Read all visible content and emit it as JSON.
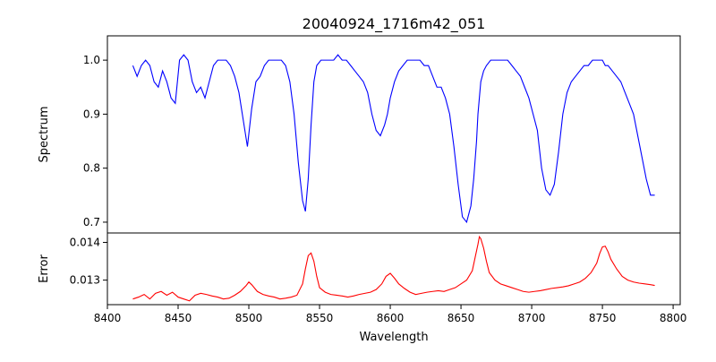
{
  "chart_data": [
    {
      "type": "line",
      "title": "20040924_1716m42_051",
      "xlabel": "",
      "ylabel": "Spectrum",
      "xlim": [
        8400,
        8805
      ],
      "ylim": [
        0.68,
        1.045
      ],
      "xticks": [
        8400,
        8450,
        8500,
        8550,
        8600,
        8650,
        8700,
        8750,
        8800
      ],
      "yticks": [
        0.7,
        0.8,
        0.9,
        1.0
      ],
      "ytick_labels": [
        "0.7",
        "0.8",
        "0.9",
        "1.0"
      ],
      "color": "#0000ff",
      "series": [
        {
          "x": [
            8418,
            8421,
            8424,
            8427,
            8430,
            8433,
            8436,
            8439,
            8442,
            8445,
            8448,
            8451,
            8454,
            8457,
            8460,
            8463,
            8466,
            8469,
            8472,
            8475,
            8478,
            8481,
            8484,
            8487,
            8490,
            8493,
            8496,
            8499,
            8502,
            8505,
            8508,
            8511,
            8514,
            8517,
            8520,
            8523,
            8526,
            8529,
            8532,
            8535,
            8538,
            8540,
            8542,
            8544,
            8546,
            8548,
            8551,
            8554,
            8557,
            8560,
            8563,
            8566,
            8569,
            8572,
            8575,
            8578,
            8581,
            8584,
            8587,
            8590,
            8593,
            8596,
            8598,
            8600,
            8603,
            8606,
            8609,
            8612,
            8615,
            8618,
            8621,
            8624,
            8627,
            8630,
            8633,
            8636,
            8639,
            8642,
            8645,
            8648,
            8651,
            8654,
            8657,
            8659,
            8661,
            8662,
            8663,
            8664,
            8666,
            8668,
            8671,
            8674,
            8677,
            8680,
            8683,
            8686,
            8689,
            8692,
            8695,
            8698,
            8701,
            8704,
            8707,
            8710,
            8713,
            8716,
            8719,
            8722,
            8725,
            8728,
            8731,
            8734,
            8737,
            8740,
            8743,
            8746,
            8748,
            8750,
            8752,
            8754,
            8757,
            8760,
            8763,
            8766,
            8769,
            8772,
            8775,
            8778,
            8781,
            8784,
            8787
          ],
          "y": [
            0.99,
            0.97,
            0.99,
            1.0,
            0.99,
            0.96,
            0.95,
            0.98,
            0.96,
            0.93,
            0.92,
            1.0,
            1.01,
            1.0,
            0.96,
            0.94,
            0.95,
            0.93,
            0.96,
            0.99,
            1.0,
            1.0,
            1.0,
            0.99,
            0.97,
            0.94,
            0.89,
            0.84,
            0.91,
            0.96,
            0.97,
            0.99,
            1.0,
            1.0,
            1.0,
            1.0,
            0.99,
            0.96,
            0.9,
            0.81,
            0.74,
            0.72,
            0.78,
            0.88,
            0.96,
            0.99,
            1.0,
            1.0,
            1.0,
            1.0,
            1.01,
            1.0,
            1.0,
            0.99,
            0.98,
            0.97,
            0.96,
            0.94,
            0.9,
            0.87,
            0.86,
            0.88,
            0.9,
            0.93,
            0.96,
            0.98,
            0.99,
            1.0,
            1.0,
            1.0,
            1.0,
            0.99,
            0.99,
            0.97,
            0.95,
            0.95,
            0.93,
            0.9,
            0.84,
            0.77,
            0.71,
            0.7,
            0.73,
            0.78,
            0.85,
            0.9,
            0.93,
            0.96,
            0.98,
            0.99,
            1.0,
            1.0,
            1.0,
            1.0,
            1.0,
            0.99,
            0.98,
            0.97,
            0.95,
            0.93,
            0.9,
            0.87,
            0.8,
            0.76,
            0.75,
            0.77,
            0.83,
            0.9,
            0.94,
            0.96,
            0.97,
            0.98,
            0.99,
            0.99,
            1.0,
            1.0,
            1.0,
            1.0,
            0.99,
            0.99,
            0.98,
            0.97,
            0.96,
            0.94,
            0.92,
            0.9,
            0.86,
            0.82,
            0.78,
            0.75,
            0.75
          ]
        }
      ]
    },
    {
      "type": "line",
      "title": "",
      "xlabel": "Wavelength",
      "ylabel": "Error",
      "xlim": [
        8400,
        8805
      ],
      "ylim": [
        0.01235,
        0.01425
      ],
      "xticks": [
        8400,
        8450,
        8500,
        8550,
        8600,
        8650,
        8700,
        8750,
        8800
      ],
      "xtick_labels": [
        "8400",
        "8450",
        "8500",
        "8550",
        "8600",
        "8650",
        "8700",
        "8750",
        "8800"
      ],
      "yticks": [
        0.013,
        0.014
      ],
      "ytick_labels": [
        "0.013",
        "0.014"
      ],
      "color": "#ff0000",
      "series": [
        {
          "x": [
            8418,
            8422,
            8426,
            8430,
            8434,
            8438,
            8442,
            8446,
            8450,
            8454,
            8458,
            8462,
            8466,
            8470,
            8474,
            8478,
            8482,
            8486,
            8490,
            8494,
            8498,
            8500,
            8502,
            8506,
            8510,
            8514,
            8518,
            8522,
            8526,
            8530,
            8534,
            8538,
            8540,
            8542,
            8544,
            8546,
            8548,
            8550,
            8554,
            8558,
            8562,
            8566,
            8570,
            8574,
            8578,
            8582,
            8586,
            8590,
            8594,
            8597,
            8600,
            8603,
            8606,
            8610,
            8614,
            8618,
            8622,
            8626,
            8630,
            8634,
            8638,
            8642,
            8646,
            8650,
            8654,
            8658,
            8660,
            8662,
            8663,
            8664,
            8666,
            8668,
            8670,
            8674,
            8678,
            8682,
            8686,
            8690,
            8694,
            8698,
            8702,
            8706,
            8710,
            8714,
            8718,
            8722,
            8726,
            8730,
            8734,
            8738,
            8742,
            8746,
            8748,
            8750,
            8752,
            8754,
            8756,
            8760,
            8764,
            8768,
            8772,
            8776,
            8780,
            8784,
            8787
          ],
          "y": [
            0.0125,
            0.01255,
            0.01262,
            0.0125,
            0.01265,
            0.0127,
            0.0126,
            0.01268,
            0.01255,
            0.0125,
            0.01245,
            0.0126,
            0.01265,
            0.01262,
            0.01258,
            0.01255,
            0.0125,
            0.01252,
            0.0126,
            0.0127,
            0.01285,
            0.01295,
            0.01288,
            0.0127,
            0.01262,
            0.01258,
            0.01255,
            0.0125,
            0.01252,
            0.01255,
            0.0126,
            0.0129,
            0.0133,
            0.01365,
            0.01372,
            0.0135,
            0.0131,
            0.0128,
            0.01268,
            0.01262,
            0.0126,
            0.01258,
            0.01255,
            0.01258,
            0.01262,
            0.01265,
            0.01268,
            0.01275,
            0.0129,
            0.0131,
            0.01318,
            0.01305,
            0.0129,
            0.01278,
            0.01268,
            0.01262,
            0.01265,
            0.01268,
            0.0127,
            0.01272,
            0.0127,
            0.01275,
            0.0128,
            0.0129,
            0.013,
            0.01325,
            0.0136,
            0.01395,
            0.01415,
            0.0141,
            0.01385,
            0.0135,
            0.0132,
            0.013,
            0.0129,
            0.01285,
            0.0128,
            0.01275,
            0.0127,
            0.01268,
            0.0127,
            0.01272,
            0.01275,
            0.01278,
            0.0128,
            0.01282,
            0.01285,
            0.0129,
            0.01295,
            0.01305,
            0.0132,
            0.01345,
            0.0137,
            0.01388,
            0.0139,
            0.01375,
            0.01355,
            0.0133,
            0.0131,
            0.013,
            0.01295,
            0.01292,
            0.0129,
            0.01288,
            0.01286
          ]
        }
      ]
    }
  ]
}
